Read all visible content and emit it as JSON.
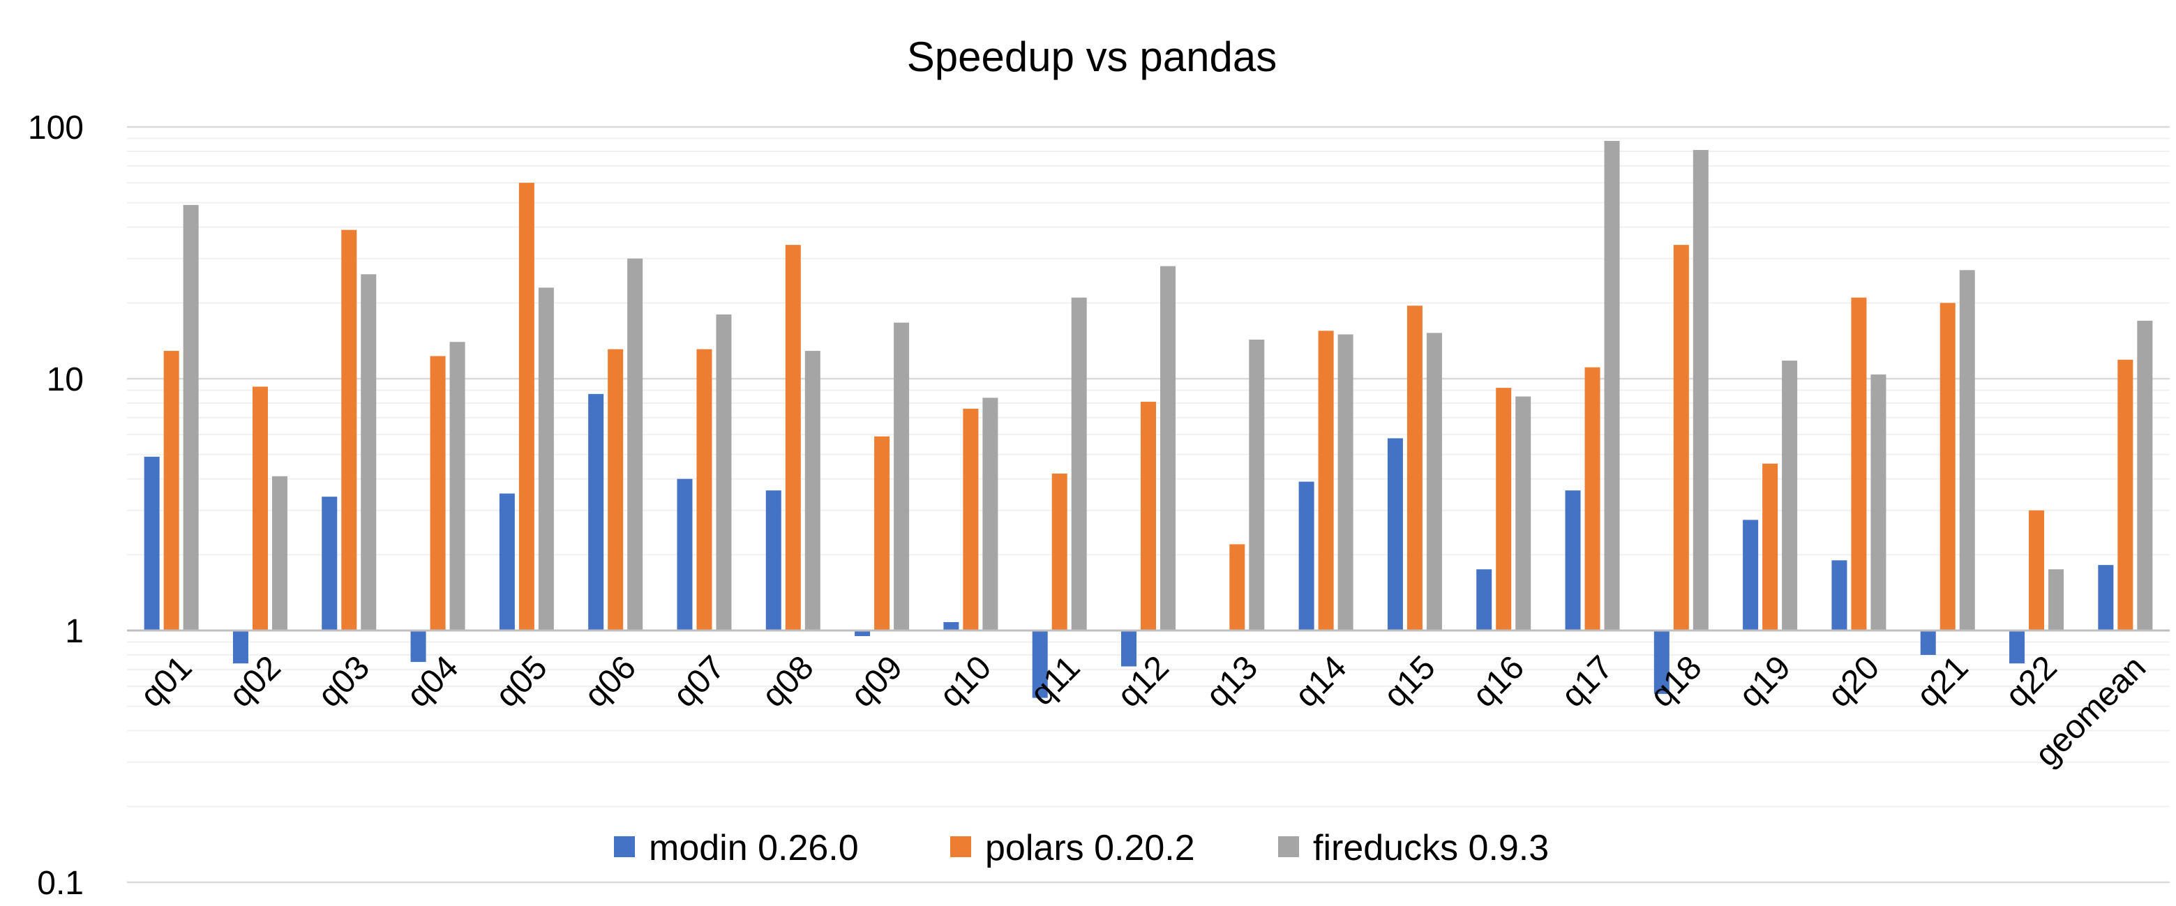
{
  "chart_data": {
    "type": "bar",
    "title": "Speedup vs pandas",
    "xlabel": "",
    "ylabel": "",
    "y_scale": "log",
    "ylim": [
      0.1,
      100
    ],
    "y_ticks": [
      "0.1",
      "1",
      "10",
      "100"
    ],
    "grid": "horizontal major and minor lines",
    "legend_position": "bottom",
    "baseline": 1,
    "categories": [
      "q01",
      "q02",
      "q03",
      "q04",
      "q05",
      "q06",
      "q07",
      "q08",
      "q09",
      "q10",
      "q11",
      "q12",
      "q13",
      "q14",
      "q15",
      "q16",
      "q17",
      "q18",
      "q19",
      "q20",
      "q21",
      "q22",
      "geomean"
    ],
    "series": [
      {
        "name": "modin 0.26.0",
        "color": "#4472C4",
        "values": [
          4.9,
          0.74,
          3.4,
          0.75,
          3.5,
          8.7,
          4.0,
          3.6,
          0.95,
          1.08,
          0.54,
          0.72,
          null,
          3.9,
          5.8,
          1.75,
          3.6,
          0.56,
          2.75,
          1.9,
          0.8,
          0.74,
          1.82
        ]
      },
      {
        "name": "polars 0.20.2",
        "color": "#ED7D31",
        "values": [
          12.9,
          9.3,
          39,
          12.3,
          60,
          13.1,
          13.1,
          34,
          5.9,
          7.6,
          4.2,
          8.1,
          2.2,
          15.5,
          19.5,
          9.2,
          11.1,
          34,
          4.6,
          21,
          20,
          3.0,
          11.9
        ]
      },
      {
        "name": "fireducks 0.9.3",
        "color": "#A5A5A5",
        "values": [
          49,
          4.1,
          26,
          14,
          23,
          30,
          18,
          12.9,
          16.7,
          8.4,
          21,
          28,
          14.3,
          15,
          15.2,
          8.5,
          88,
          81,
          11.8,
          10.4,
          27,
          1.75,
          17
        ]
      }
    ]
  }
}
